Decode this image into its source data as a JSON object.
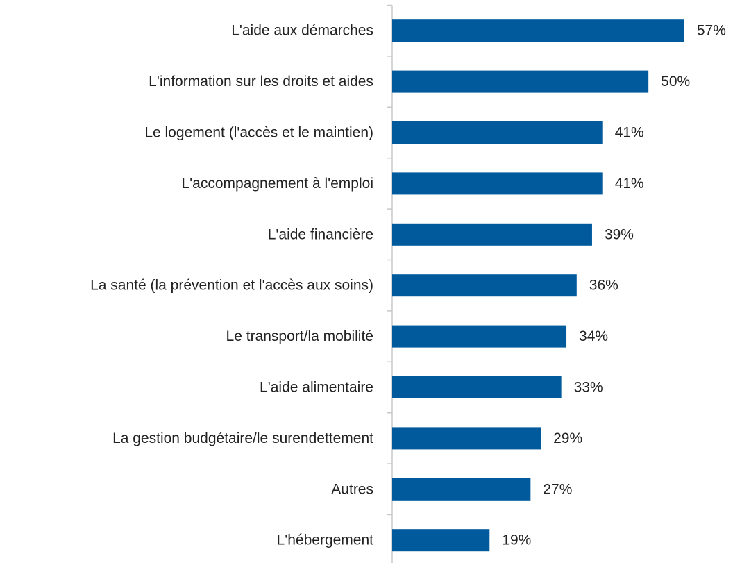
{
  "chart_data": {
    "type": "bar",
    "orientation": "horizontal",
    "categories": [
      "L'aide aux démarches",
      "L'information sur les droits et aides",
      "Le logement (l'accès et le maintien)",
      "L'accompagnement à l'emploi",
      "L'aide financière",
      "La santé (la prévention et l'accès aux soins)",
      "Le transport/la mobilité",
      "L'aide alimentaire",
      "La gestion budgétaire/le surendettement",
      "Autres",
      "L'hébergement"
    ],
    "values": [
      57,
      50,
      41,
      41,
      39,
      36,
      34,
      33,
      29,
      27,
      19
    ],
    "value_labels": [
      "57%",
      "50%",
      "41%",
      "41%",
      "39%",
      "36%",
      "34%",
      "33%",
      "29%",
      "27%",
      "19%"
    ],
    "color": "#005a9c",
    "xlim": [
      0,
      60
    ]
  }
}
